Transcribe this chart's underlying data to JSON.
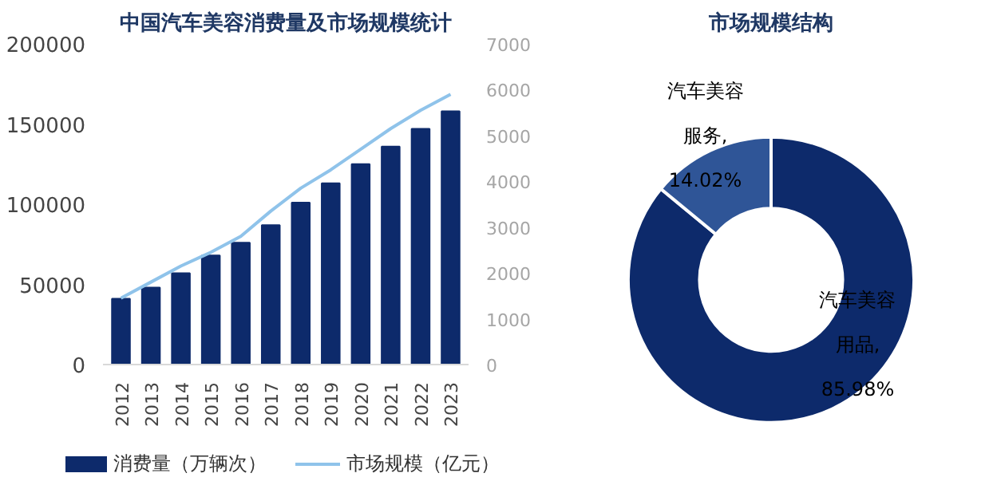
{
  "chart_data": [
    {
      "type": "bar",
      "title": "中国汽车美容消费量及市场规模统计",
      "categories": [
        "2012",
        "2013",
        "2014",
        "2015",
        "2016",
        "2017",
        "2018",
        "2019",
        "2020",
        "2021",
        "2022",
        "2023"
      ],
      "series": [
        {
          "name": "消费量（万辆次）",
          "type": "bar",
          "color": "#0d2a6b",
          "values": [
            41000,
            48000,
            57000,
            68000,
            76000,
            87000,
            101000,
            113000,
            125000,
            136000,
            147000,
            158000
          ]
        },
        {
          "name": "市场规模（亿元）",
          "type": "line",
          "axis": "y2",
          "color": "#8fc3ea",
          "values": [
            1450,
            1800,
            2150,
            2450,
            2800,
            3350,
            3850,
            4250,
            4700,
            5150,
            5550,
            5900
          ]
        }
      ],
      "ylim": [
        0,
        200000
      ],
      "yticks": [
        0,
        50000,
        100000,
        150000,
        200000
      ],
      "y2lim": [
        0,
        7000
      ],
      "y2ticks": [
        0,
        1000,
        2000,
        3000,
        4000,
        5000,
        6000,
        7000
      ],
      "grid": false,
      "legend": "bottom"
    },
    {
      "type": "donut",
      "title": "市场规模结构",
      "categories": [
        "汽车美容用品",
        "汽车美容服务"
      ],
      "values": [
        85.98,
        14.02
      ],
      "value_labels": [
        ", 85.98%",
        ", 14.02%"
      ],
      "colors": [
        "#0d2a6b",
        "#2f5597"
      ],
      "data_labels": true
    }
  ]
}
